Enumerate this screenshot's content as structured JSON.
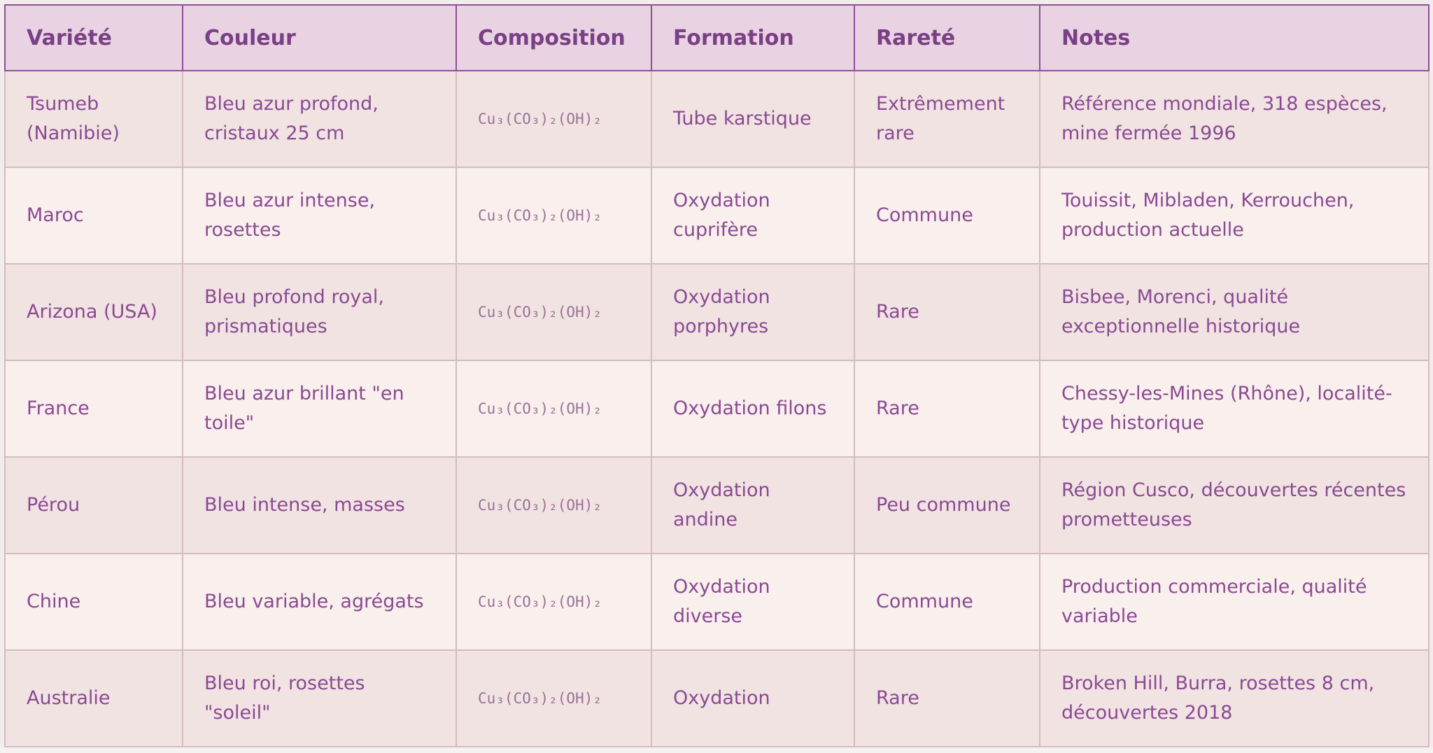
{
  "table": {
    "headers": [
      "Variété",
      "Couleur",
      "Composition",
      "Formation",
      "Rareté",
      "Notes"
    ],
    "rows": [
      [
        "Tsumeb (Namibie)",
        "Bleu azur profond, cristaux 25 cm",
        "Cu₃(CO₃)₂(OH)₂",
        "Tube karstique",
        "Extrêmement rare",
        "Référence mondiale, 318 espèces, mine fermée 1996"
      ],
      [
        "Maroc",
        "Bleu azur intense, rosettes",
        "Cu₃(CO₃)₂(OH)₂",
        "Oxydation cuprifère",
        "Commune",
        "Touissit, Mibladen, Kerrouchen, production actuelle"
      ],
      [
        "Arizona (USA)",
        "Bleu profond royal, prismatiques",
        "Cu₃(CO₃)₂(OH)₂",
        "Oxydation porphyres",
        "Rare",
        "Bisbee, Morenci, qualité exceptionnelle historique"
      ],
      [
        "France",
        "Bleu azur brillant \"en toile\"",
        "Cu₃(CO₃)₂(OH)₂",
        "Oxydation filons",
        "Rare",
        "Chessy-les-Mines (Rhône), localité-type historique"
      ],
      [
        "Pérou",
        "Bleu intense, masses",
        "Cu₃(CO₃)₂(OH)₂",
        "Oxydation andine",
        "Peu commune",
        "Région Cusco, découvertes récentes prometteuses"
      ],
      [
        "Chine",
        "Bleu variable, agrégats",
        "Cu₃(CO₃)₂(OH)₂",
        "Oxydation diverse",
        "Commune",
        "Production commerciale, qualité variable"
      ],
      [
        "Australie",
        "Bleu roi, rosettes \"soleil\"",
        "Cu₃(CO₃)₂(OH)₂",
        "Oxydation",
        "Rare",
        "Broken Hill, Burra, rosettes 8 cm, découvertes 2018"
      ]
    ]
  },
  "colors": {
    "header_bg": "#e9d3e3",
    "header_text": "#7a3f86",
    "header_border": "#8e4f96",
    "row_odd_bg": "#f1e3e2",
    "row_even_bg": "#f9efec",
    "cell_text": "#8a4a93",
    "cell_border": "#d2bcc2"
  }
}
